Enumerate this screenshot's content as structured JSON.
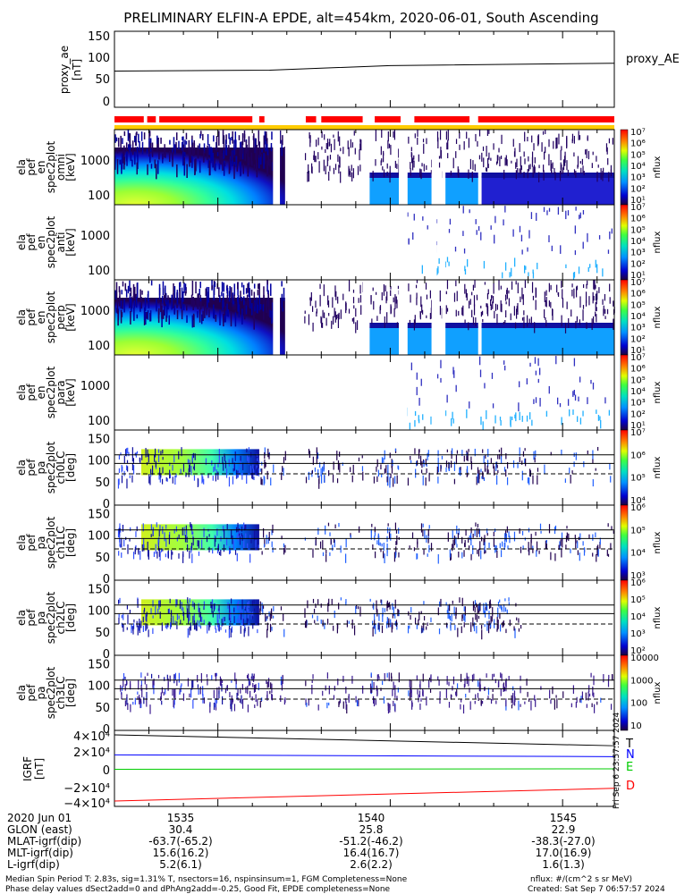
{
  "title": "PRELIMINARY ELFIN-A EPDE, alt=454km, 2020-06-01, South Ascending",
  "side_stamp": "Fri Sep  6 23:57:57 2024",
  "chart_data": [
    {
      "id": "proxy_ae",
      "type": "line",
      "ylabel": [
        "proxy_ae",
        "[nT]"
      ],
      "legend": "proxy_AE",
      "yticks": [
        "150",
        "100",
        "50",
        "0"
      ],
      "ylim": [
        0,
        150
      ],
      "x_minutes": [
        0,
        12,
        24
      ],
      "x": [
        1532.0,
        1536.5,
        1540.0,
        1546.5
      ],
      "y": [
        75,
        77,
        87,
        92
      ]
    },
    {
      "id": "status_bars",
      "type": "bar",
      "description_colors": {
        "science": "#ff0000",
        "orbit": "#ffcc00"
      },
      "segments_x": [
        [
          1532.0,
          1532.85
        ],
        [
          1532.95,
          1533.2
        ],
        [
          1533.3,
          1536.0
        ],
        [
          1536.2,
          1536.35
        ],
        [
          1537.55,
          1537.85
        ],
        [
          1538.0,
          1539.2
        ],
        [
          1539.55,
          1540.3
        ],
        [
          1540.7,
          1542.3
        ],
        [
          1542.55,
          1546.5
        ]
      ]
    },
    {
      "id": "spec_omni",
      "type": "heatmap",
      "ylabel": [
        "ela",
        "pef",
        "en",
        "spec2plot",
        "omni",
        "[keV]"
      ],
      "yticks": [
        "1000",
        "100"
      ],
      "colorbar_label": "nflux",
      "colorbar_ticks": [
        "10⁷",
        "10⁶",
        "10⁵",
        "10⁴",
        "10³",
        "10²",
        "10¹"
      ]
    },
    {
      "id": "spec_anti",
      "type": "heatmap",
      "ylabel": [
        "ela",
        "pef",
        "en",
        "spec2plot",
        "anti",
        "[keV]"
      ],
      "yticks": [
        "1000",
        "100"
      ],
      "colorbar_label": "nflux",
      "colorbar_ticks": [
        "10⁷",
        "10⁶",
        "10⁵",
        "10⁴",
        "10³",
        "10²",
        "10¹"
      ]
    },
    {
      "id": "spec_perp",
      "type": "heatmap",
      "ylabel": [
        "ela",
        "pef",
        "en",
        "spec2plot",
        "perp",
        "[keV]"
      ],
      "yticks": [
        "1000",
        "100"
      ],
      "colorbar_label": "nflux",
      "colorbar_ticks": [
        "10⁷",
        "10⁶",
        "10⁵",
        "10⁴",
        "10³",
        "10²",
        "10¹"
      ]
    },
    {
      "id": "spec_para",
      "type": "heatmap",
      "ylabel": [
        "ela",
        "pef",
        "en",
        "spec2plot",
        "para",
        "[keV]"
      ],
      "yticks": [
        "1000",
        "100"
      ],
      "colorbar_label": "nflux",
      "colorbar_ticks": [
        "10⁷",
        "10⁶",
        "10⁵",
        "10⁴",
        "10³",
        "10²",
        "10¹"
      ]
    },
    {
      "id": "pa_ch0",
      "type": "heatmap",
      "ylabel": [
        "ela",
        "pef",
        "pa",
        "spec2plot",
        "ch0LC",
        "[deg]"
      ],
      "yticks": [
        "150",
        "100",
        "50",
        "0"
      ],
      "colorbar_label": "nflux",
      "colorbar_ticks": [
        "10⁷",
        "10⁶",
        "10⁵",
        "10⁴"
      ]
    },
    {
      "id": "pa_ch1",
      "type": "heatmap",
      "ylabel": [
        "ela",
        "pef",
        "pa",
        "spec2plot",
        "ch1LC",
        "[deg]"
      ],
      "yticks": [
        "150",
        "100",
        "50",
        "0"
      ],
      "colorbar_label": "nflux",
      "colorbar_ticks": [
        "10⁶",
        "10⁵",
        "10⁴",
        "10³"
      ]
    },
    {
      "id": "pa_ch2",
      "type": "heatmap",
      "ylabel": [
        "ela",
        "pef",
        "pa",
        "spec2plot",
        "ch2LC",
        "[deg]"
      ],
      "yticks": [
        "150",
        "100",
        "50",
        "0"
      ],
      "colorbar_label": "nflux",
      "colorbar_ticks": [
        "10⁶",
        "10⁵",
        "10⁴",
        "10³",
        "10²"
      ]
    },
    {
      "id": "pa_ch3",
      "type": "heatmap",
      "ylabel": [
        "ela",
        "pef",
        "pa",
        "spec2plot",
        "ch3LC",
        "[deg]"
      ],
      "yticks": [
        "150",
        "100",
        "50",
        "0"
      ],
      "colorbar_label": "nflux",
      "colorbar_ticks": [
        "10000",
        "1000",
        "100",
        "10"
      ]
    },
    {
      "id": "igrf",
      "type": "line",
      "ylabel": [
        "IGRF",
        "[nT]"
      ],
      "yticks": [
        "4×10⁴",
        "2×10⁴",
        "0",
        "−2×10⁴",
        "−4×10⁴"
      ],
      "ylim": [
        -40000,
        40000
      ],
      "x": [
        1532.0,
        1546.5
      ],
      "series": [
        {
          "name": "T",
          "color": "#000000",
          "values": [
            37000,
            25000
          ]
        },
        {
          "name": "N",
          "color": "#0000ff",
          "values": [
            15000,
            13000
          ]
        },
        {
          "name": "E",
          "color": "#00cc00",
          "values": [
            -1000,
            -500
          ]
        },
        {
          "name": "D",
          "color": "#ff0000",
          "values": [
            -36000,
            -22000
          ]
        }
      ]
    }
  ],
  "x_axis": {
    "ticks": [
      1535,
      1540,
      1545
    ],
    "tick_labels": [
      "1535",
      "1540",
      "1545"
    ],
    "xlim": [
      1532.0,
      1546.5
    ]
  },
  "footer": {
    "row_labels": [
      "2020 Jun 01",
      "GLON (east)",
      "MLAT-igrf(dip)",
      "MLT-igrf(dip)",
      "L-igrf(dip)"
    ],
    "columns": [
      [
        "1535",
        "30.4",
        "-63.7(-65.2)",
        "15.6(16.2)",
        "5.2(6.1)"
      ],
      [
        "1540",
        "25.8",
        "-51.2(-46.2)",
        "16.4(16.7)",
        "2.6(2.2)"
      ],
      [
        "1545",
        "22.9",
        "-38.3(-27.0)",
        "17.0(16.9)",
        "1.6(1.3)"
      ]
    ],
    "note1": "Median Spin Period T: 2.83s, sig=1.31% T, nsectors=16, nspinsinsum=1, FGM Completeness=None",
    "note2": "Phase delay values dSect2add=0 and dPhAng2add=-0.25, Good Fit, EPDE completeness=None",
    "units": "nflux: #/(cm^2 s sr MeV)",
    "created": "Created: Sat Sep  7 06:57:57 2024"
  }
}
